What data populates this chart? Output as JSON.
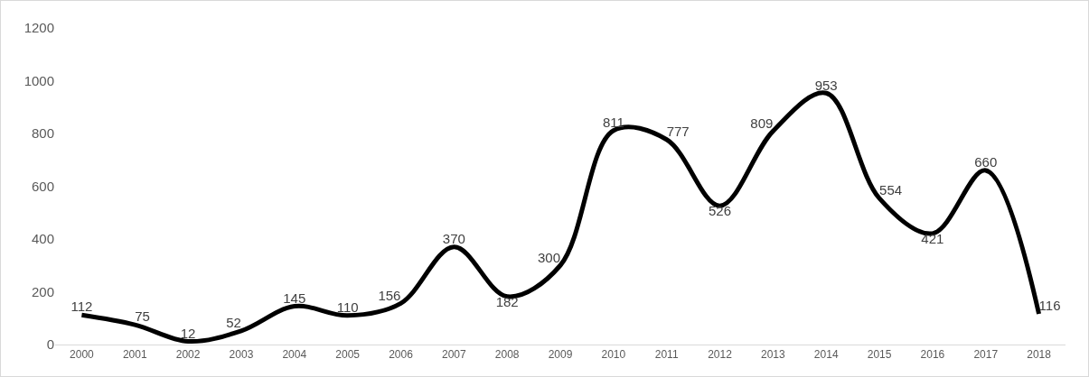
{
  "chart_data": {
    "type": "line",
    "categories": [
      "2000",
      "2001",
      "2002",
      "2003",
      "2004",
      "2005",
      "2006",
      "2007",
      "2008",
      "2009",
      "2010",
      "2011",
      "2012",
      "2013",
      "2014",
      "2015",
      "2016",
      "2017",
      "2018"
    ],
    "series": [
      {
        "color": "#000000",
        "values": [
          112,
          75,
          12,
          52,
          145,
          110,
          156,
          370,
          182,
          300,
          811,
          777,
          526,
          809,
          953,
          554,
          421,
          660,
          116
        ]
      }
    ],
    "ylim": [
      0,
      1200
    ],
    "yticks": [
      0,
      200,
      400,
      600,
      800,
      1000,
      1200
    ],
    "grid": false,
    "data_labels": true,
    "line_style": "solid",
    "marker": "none"
  }
}
